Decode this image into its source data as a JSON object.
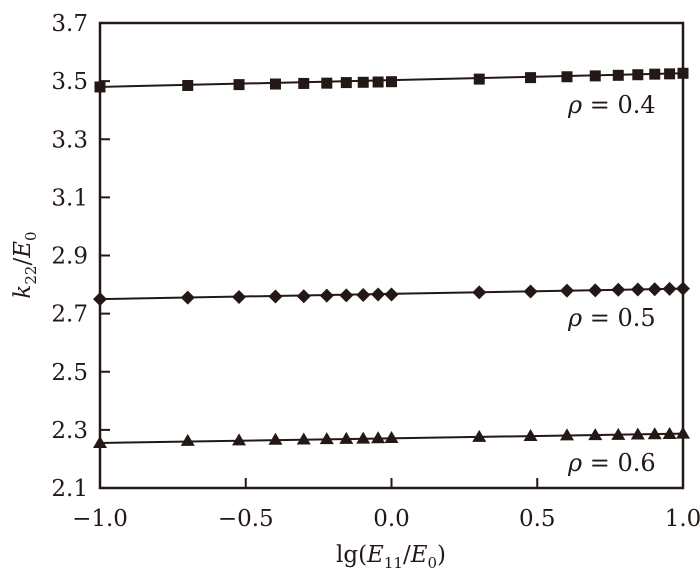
{
  "chart_data": {
    "type": "line",
    "title": "",
    "xlabel": "lg(E11/E0)",
    "xlabel_parts": {
      "prefix": "lg(",
      "var1": "E",
      "sub1": "11",
      "sep": "/",
      "var2": "E",
      "sub2": "0",
      "suffix": ")"
    },
    "ylabel": "k22/E0",
    "ylabel_parts": {
      "var1": "k",
      "sub1": "22",
      "sep": "/",
      "var2": "E",
      "sub2": "0"
    },
    "xlim": [
      -1.0,
      1.0
    ],
    "ylim": [
      2.1,
      3.7
    ],
    "xticks": [
      -1.0,
      -0.5,
      0.0,
      0.5,
      1.0
    ],
    "xtick_labels": [
      "−1.0",
      "−0.5",
      "0.0",
      "0.5",
      "1.0"
    ],
    "yticks": [
      2.1,
      2.3,
      2.5,
      2.7,
      2.9,
      3.1,
      3.3,
      3.5,
      3.7
    ],
    "ytick_labels": [
      "2.1",
      "2.3",
      "2.5",
      "2.7",
      "2.9",
      "3.1",
      "3.3",
      "3.5",
      "3.7"
    ],
    "grid": false,
    "legend": "inline labels near right end of each series",
    "x": [
      -1.0,
      -0.699,
      -0.523,
      -0.398,
      -0.301,
      -0.222,
      -0.155,
      -0.097,
      -0.046,
      0.0,
      0.301,
      0.477,
      0.602,
      0.699,
      0.778,
      0.845,
      0.903,
      0.954,
      1.0
    ],
    "series": [
      {
        "name": "ρ = 0.4",
        "label_rho": "ρ",
        "label_value": "= 0.4",
        "marker": "square",
        "values": [
          3.48,
          3.485,
          3.488,
          3.49,
          3.492,
          3.493,
          3.495,
          3.496,
          3.497,
          3.498,
          3.507,
          3.512,
          3.515,
          3.518,
          3.52,
          3.522,
          3.524,
          3.525,
          3.527
        ],
        "fit": [
          3.48,
          3.527
        ]
      },
      {
        "name": "ρ = 0.5",
        "label_rho": "ρ",
        "label_value": "= 0.5",
        "marker": "diamond",
        "values": [
          2.75,
          2.755,
          2.757,
          2.759,
          2.76,
          2.762,
          2.763,
          2.764,
          2.766,
          2.766,
          2.773,
          2.776,
          2.779,
          2.78,
          2.782,
          2.783,
          2.784,
          2.785,
          2.786
        ],
        "fit": [
          2.75,
          2.786
        ]
      },
      {
        "name": "ρ = 0.6",
        "label_rho": "ρ",
        "label_value": "= 0.6",
        "marker": "triangle",
        "values": [
          2.255,
          2.262,
          2.264,
          2.266,
          2.267,
          2.268,
          2.269,
          2.27,
          2.271,
          2.272,
          2.276,
          2.279,
          2.281,
          2.282,
          2.283,
          2.284,
          2.285,
          2.286,
          2.287
        ],
        "fit": [
          2.255,
          2.287
        ]
      }
    ]
  },
  "colors": {
    "ink": "#231815",
    "background": "#ffffff"
  }
}
